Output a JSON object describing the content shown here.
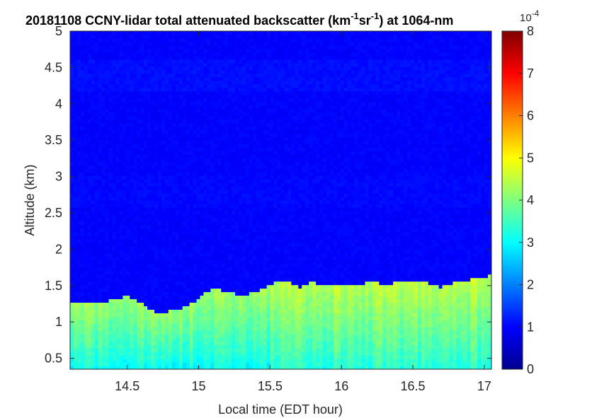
{
  "chart_data": {
    "type": "heatmap",
    "title": {
      "prefix": "20181108 CCNY-lidar total attenuated backscatter (km",
      "sup1": "-1",
      "mid": "sr",
      "sup2": "-1",
      "suffix": ") at 1064-nm"
    },
    "xlabel": "Local time (EDT hour)",
    "ylabel": "Altitude (km)",
    "xlim": [
      14.1,
      17.05
    ],
    "ylim": [
      0.35,
      5.0
    ],
    "xticks": [
      "14.5",
      "15",
      "15.5",
      "16",
      "16.5",
      "17"
    ],
    "yticks": [
      "0.5",
      "1",
      "1.5",
      "2",
      "2.5",
      "3",
      "3.5",
      "4",
      "4.5",
      "5"
    ],
    "colorbar": {
      "range": [
        0,
        8
      ],
      "ticks": [
        "0",
        "1",
        "2",
        "3",
        "4",
        "5",
        "6",
        "7",
        "8"
      ],
      "exponent_base": "10",
      "exponent": "-4",
      "colormap": "jet"
    },
    "boundary_layer_top": {
      "time": [
        14.1,
        14.3,
        14.4,
        14.5,
        14.6,
        14.7,
        14.8,
        14.9,
        15.0,
        15.1,
        15.2,
        15.3,
        15.4,
        15.5,
        15.6,
        15.7,
        15.8,
        15.9,
        16.0,
        16.1,
        16.2,
        16.3,
        16.4,
        16.5,
        16.6,
        16.7,
        16.8,
        16.9,
        17.05
      ],
      "altitude": [
        1.28,
        1.25,
        1.32,
        1.35,
        1.28,
        1.12,
        1.15,
        1.2,
        1.33,
        1.48,
        1.42,
        1.36,
        1.42,
        1.52,
        1.58,
        1.48,
        1.55,
        1.5,
        1.52,
        1.5,
        1.56,
        1.52,
        1.55,
        1.57,
        1.55,
        1.48,
        1.55,
        1.58,
        1.65
      ]
    },
    "layer_value_bottom": 3.0,
    "layer_value_top": 4.2,
    "background_value": 1.0
  }
}
